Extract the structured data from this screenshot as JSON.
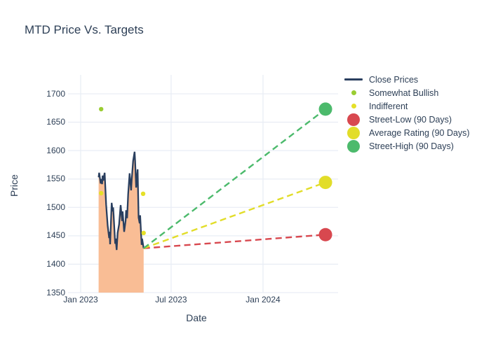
{
  "title": "MTD Price Vs. Targets",
  "colors": {
    "text": "#2e4057",
    "grid": "#e9edf5",
    "close_line": "#2a3f5f",
    "area_fill": "#f9bd95",
    "somewhat_bullish": "#9acd32",
    "indifferent": "#e5e028",
    "street_low": "#d8484f",
    "average_rating": "#e2dd29",
    "street_high": "#4cba6c"
  },
  "legend": [
    {
      "label": "Close Prices",
      "marker": "line",
      "color_key": "close_line"
    },
    {
      "label": "Somewhat Bullish",
      "marker": "dot",
      "color_key": "somewhat_bullish"
    },
    {
      "label": "Indifferent",
      "marker": "dot",
      "color_key": "indifferent"
    },
    {
      "label": "Street-Low (90 Days)",
      "marker": "circle",
      "color_key": "street_low"
    },
    {
      "label": "Average Rating (90 Days)",
      "marker": "circle",
      "color_key": "average_rating"
    },
    {
      "label": "Street-High (90 Days)",
      "marker": "circle",
      "color_key": "street_high"
    }
  ],
  "chart_data": {
    "type": "line",
    "title": "MTD Price Vs. Targets",
    "xlabel": "Date",
    "ylabel": "Price",
    "ylim": [
      1350,
      1700
    ],
    "grid": true,
    "legend_position": "right",
    "y_ticks": [
      1350,
      1400,
      1450,
      1500,
      1550,
      1600,
      1650,
      1700
    ],
    "x_ticks": [
      {
        "label": "Jan 2023",
        "date": "2023-01-01"
      },
      {
        "label": "Jul 2023",
        "date": "2023-07-01"
      },
      {
        "label": "Jan 2024",
        "date": "2024-01-01"
      }
    ],
    "close_prices": [
      [
        "2023-02-06",
        1553
      ],
      [
        "2023-02-07",
        1561
      ],
      [
        "2023-02-10",
        1542
      ],
      [
        "2023-02-11",
        1550
      ],
      [
        "2023-02-13",
        1541
      ],
      [
        "2023-02-14",
        1556
      ],
      [
        "2023-02-15",
        1547
      ],
      [
        "2023-02-18",
        1561
      ],
      [
        "2023-02-21",
        1505
      ],
      [
        "2023-02-24",
        1468
      ],
      [
        "2023-02-27",
        1446
      ],
      [
        "2023-02-28",
        1457
      ],
      [
        "2023-03-01",
        1435
      ],
      [
        "2023-03-04",
        1508
      ],
      [
        "2023-03-06",
        1493
      ],
      [
        "2023-03-07",
        1500
      ],
      [
        "2023-03-08",
        1486
      ],
      [
        "2023-03-11",
        1436
      ],
      [
        "2023-03-12",
        1445
      ],
      [
        "2023-03-14",
        1425
      ],
      [
        "2023-03-16",
        1455
      ],
      [
        "2023-03-19",
        1470
      ],
      [
        "2023-03-22",
        1504
      ],
      [
        "2023-03-25",
        1476
      ],
      [
        "2023-03-26",
        1493
      ],
      [
        "2023-03-29",
        1457
      ],
      [
        "2023-04-01",
        1477
      ],
      [
        "2023-04-02",
        1495
      ],
      [
        "2023-04-04",
        1481
      ],
      [
        "2023-04-06",
        1523
      ],
      [
        "2023-04-09",
        1560
      ],
      [
        "2023-04-12",
        1530
      ],
      [
        "2023-04-13",
        1547
      ],
      [
        "2023-04-16",
        1582
      ],
      [
        "2023-04-19",
        1598
      ],
      [
        "2023-04-20",
        1582
      ],
      [
        "2023-04-22",
        1535
      ],
      [
        "2023-04-25",
        1567
      ],
      [
        "2023-04-27",
        1482
      ],
      [
        "2023-04-29",
        1472
      ],
      [
        "2023-04-30",
        1486
      ],
      [
        "2023-05-03",
        1434
      ],
      [
        "2023-05-04",
        1445
      ],
      [
        "2023-05-07",
        1428
      ]
    ],
    "annotations": {
      "somewhat_bullish": [
        [
          "2023-02-11",
          1673
        ]
      ],
      "indifferent": [
        [
          "2023-02-11",
          1525
        ],
        [
          "2023-05-06",
          1524
        ],
        [
          "2023-05-07",
          1455
        ]
      ]
    },
    "projection_start": [
      "2023-05-07",
      1428
    ],
    "targets": [
      {
        "name": "Street-Low (90 Days)",
        "date": "2024-05-05",
        "value": 1452,
        "color_key": "street_low"
      },
      {
        "name": "Average Rating (90 Days)",
        "date": "2024-05-05",
        "value": 1544,
        "color_key": "average_rating"
      },
      {
        "name": "Street-High (90 Days)",
        "date": "2024-05-05",
        "value": 1673,
        "color_key": "street_high"
      }
    ]
  }
}
